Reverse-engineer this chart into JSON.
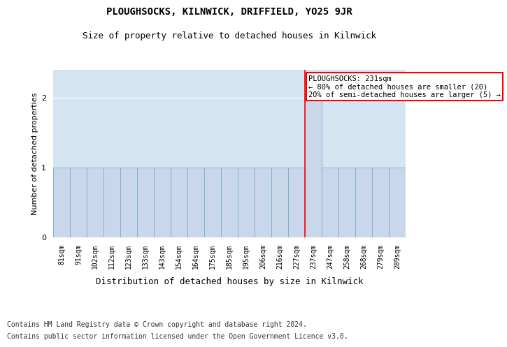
{
  "title": "PLOUGHSOCKS, KILNWICK, DRIFFIELD, YO25 9JR",
  "subtitle": "Size of property relative to detached houses in Kilnwick",
  "xlabel": "Distribution of detached houses by size in Kilnwick",
  "ylabel": "Number of detached properties",
  "footer_line1": "Contains HM Land Registry data © Crown copyright and database right 2024.",
  "footer_line2": "Contains public sector information licensed under the Open Government Licence v3.0.",
  "bin_labels": [
    "81sqm",
    "91sqm",
    "102sqm",
    "112sqm",
    "123sqm",
    "133sqm",
    "143sqm",
    "154sqm",
    "164sqm",
    "175sqm",
    "185sqm",
    "195sqm",
    "206sqm",
    "216sqm",
    "227sqm",
    "237sqm",
    "247sqm",
    "258sqm",
    "268sqm",
    "279sqm",
    "289sqm"
  ],
  "bar_values": [
    1,
    1,
    1,
    1,
    1,
    1,
    1,
    1,
    1,
    1,
    1,
    1,
    1,
    1,
    1,
    2,
    1,
    1,
    1,
    1,
    1
  ],
  "bar_color": "#c8d8ea",
  "bar_edge_color": "#7aacce",
  "property_line_index": 14.5,
  "property_sqm": 231,
  "annotation_text": "PLOUGHSOCKS: 231sqm\n← 80% of detached houses are smaller (20)\n20% of semi-detached houses are larger (5) →",
  "annotation_box_color": "white",
  "annotation_box_edge_color": "red",
  "red_line_color": "red",
  "ylim": [
    0,
    2.4
  ],
  "yticks": [
    0,
    1,
    2
  ],
  "bg_color": "#d4e4f0",
  "grid_color": "white",
  "title_fontsize": 10,
  "subtitle_fontsize": 9,
  "ylabel_fontsize": 8,
  "xlabel_fontsize": 9,
  "tick_fontsize": 7,
  "annotation_fontsize": 7.5,
  "footer_fontsize": 7
}
